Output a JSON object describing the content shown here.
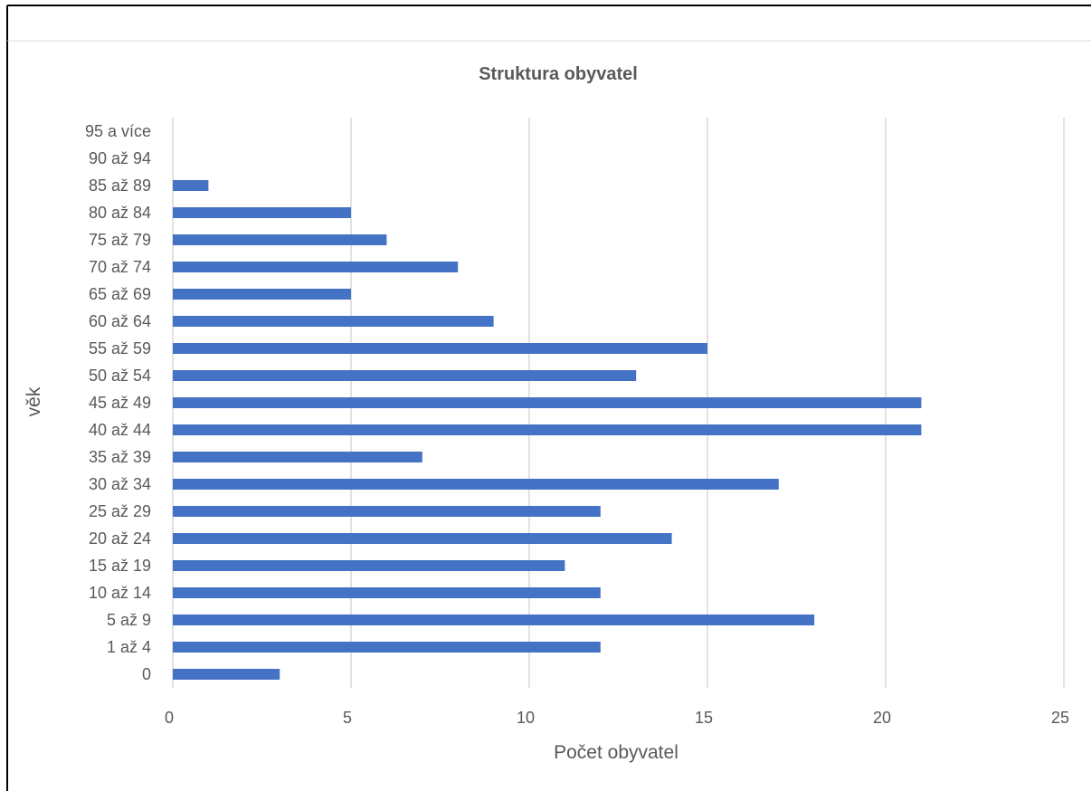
{
  "chart_data": {
    "type": "bar",
    "orientation": "horizontal",
    "title": "Struktura obyvatel",
    "xlabel": "Počet obyvatel",
    "ylabel": "věk",
    "xlim": [
      0,
      25
    ],
    "xticks": [
      0,
      5,
      10,
      15,
      20,
      25
    ],
    "grid": true,
    "legend": "none",
    "bar_color": "#4472C4",
    "categories": [
      "0",
      "1 až 4",
      "5 až 9",
      "10 až 14",
      "15 až 19",
      "20 až 24",
      "25 až 29",
      "30 až 34",
      "35 až 39",
      "40 až 44",
      "45 až 49",
      "50 až 54",
      "55 až 59",
      "60 až 64",
      "65 až 69",
      "70 až 74",
      "75 až 79",
      "80 až 84",
      "85 až 89",
      "90 až 94",
      "95 a více"
    ],
    "values": [
      3,
      12,
      18,
      12,
      11,
      14,
      12,
      17,
      7,
      21,
      21,
      13,
      15,
      9,
      5,
      8,
      6,
      5,
      1,
      0,
      0
    ]
  }
}
